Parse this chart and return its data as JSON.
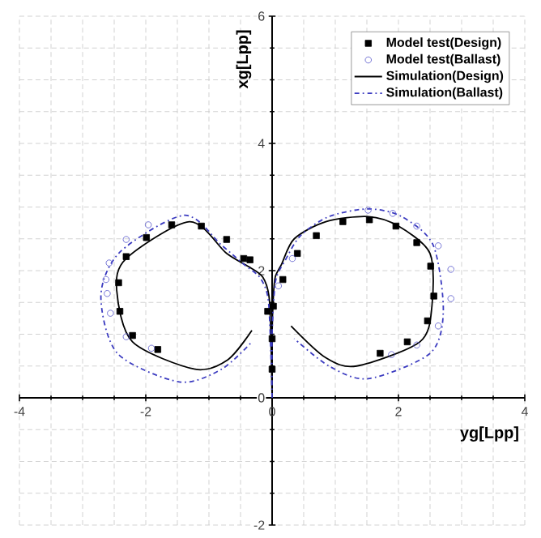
{
  "chart_data": {
    "type": "line",
    "xlabel": "yg[Lpp]",
    "ylabel": "xg[Lpp]",
    "xlim": [
      -4,
      4
    ],
    "ylim": [
      -2,
      6
    ],
    "xticks": [
      -4,
      -2,
      0,
      2,
      4
    ],
    "yticks": [
      -2,
      0,
      2,
      4,
      6
    ],
    "grid": true,
    "legend": "top right",
    "series": [
      {
        "name": "Model test(Design)",
        "type": "scatter",
        "marker": "square",
        "color": "#000000",
        "x": [
          0.4,
          0.7,
          1.12,
          1.54,
          1.96,
          2.29,
          2.51,
          2.56,
          2.46,
          2.14,
          1.71,
          0.17,
          0.02,
          0,
          0,
          -0.07,
          -0.45,
          -0.35,
          -0.72,
          -1.12,
          -1.59,
          -1.99,
          -2.31,
          -2.43,
          -2.41,
          -2.21,
          -1.81
        ],
        "values": [
          2.27,
          2.55,
          2.77,
          2.8,
          2.7,
          2.44,
          2.07,
          1.6,
          1.21,
          0.88,
          0.7,
          1.86,
          1.44,
          0.93,
          0.45,
          1.36,
          2.19,
          2.17,
          2.49,
          2.7,
          2.72,
          2.52,
          2.22,
          1.81,
          1.36,
          0.98,
          0.76
        ]
      },
      {
        "name": "Model test(Ballast)",
        "type": "scatter",
        "marker": "circle",
        "color": "#5555cc",
        "x": [
          0.32,
          0.1,
          1.52,
          1.91,
          2.29,
          2.63,
          2.83,
          2.83,
          2.63,
          2.29,
          1.89,
          -1.96,
          -2.31,
          -2.58,
          -2.63,
          -2.61,
          -2.56,
          -2.31,
          -1.91
        ],
        "values": [
          2.19,
          1.76,
          2.95,
          2.9,
          2.7,
          2.39,
          2.02,
          1.56,
          1.13,
          0.83,
          0.68,
          2.72,
          2.49,
          2.12,
          1.86,
          1.64,
          1.33,
          0.96,
          0.78
        ]
      },
      {
        "name": "Simulation(Design)",
        "line_style": "solid",
        "color": "#000000",
        "x": [
          0,
          0,
          0.02,
          0.05,
          0.15,
          0.35,
          0.85,
          1.52,
          2.0,
          2.5,
          2.53,
          2.34,
          1.34,
          0.85,
          0.3,
          null,
          0,
          -0.02,
          -0.05,
          -0.15,
          -0.35,
          -0.72,
          -1.31,
          -2.31,
          -2.46,
          -2.21,
          -1.22,
          -0.7,
          -0.32
        ],
        "values": [
          0,
          1.0,
          1.6,
          1.9,
          2.1,
          2.5,
          2.77,
          2.85,
          2.7,
          2.27,
          1.44,
          0.88,
          0.5,
          0.63,
          1.13,
          null,
          0,
          1.0,
          1.6,
          1.9,
          2.05,
          2.27,
          2.77,
          2.19,
          1.69,
          0.88,
          0.45,
          0.6,
          1.06
        ]
      },
      {
        "name": "Simulation(Ballast)",
        "line_style": "dashdot",
        "color": "#3b3bc0",
        "x": [
          0,
          0,
          0.03,
          0.07,
          0.2,
          0.45,
          0.9,
          1.52,
          2.05,
          2.55,
          2.71,
          2.5,
          1.52,
          0.9,
          0.35,
          null,
          0,
          -0.03,
          -0.07,
          -0.2,
          -0.45,
          -0.8,
          -1.39,
          -2.4,
          -2.71,
          -2.45,
          -1.47,
          -0.8,
          -0.32
        ],
        "values": [
          0,
          1.0,
          1.6,
          1.9,
          2.15,
          2.55,
          2.85,
          2.97,
          2.85,
          2.4,
          1.36,
          0.7,
          0.3,
          0.5,
          0.93,
          null,
          0,
          1.0,
          1.6,
          1.9,
          2.1,
          2.4,
          2.87,
          2.3,
          1.61,
          0.7,
          0.25,
          0.45,
          0.88
        ]
      }
    ]
  }
}
